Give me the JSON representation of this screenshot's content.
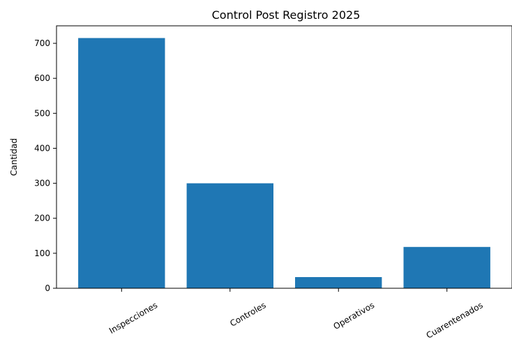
{
  "chart_data": {
    "type": "bar",
    "title": "Control Post Registro 2025",
    "xlabel": "",
    "ylabel": "Cantidad",
    "categories": [
      "Inspecciones",
      "Controles",
      "Operativos",
      "Cuarentenados"
    ],
    "values": [
      715,
      300,
      32,
      118
    ],
    "ylim": [
      0,
      750
    ],
    "yticks": [
      0,
      100,
      200,
      300,
      400,
      500,
      600,
      700
    ],
    "bar_color": "#1f77b4",
    "grid": false,
    "legend": "none"
  }
}
